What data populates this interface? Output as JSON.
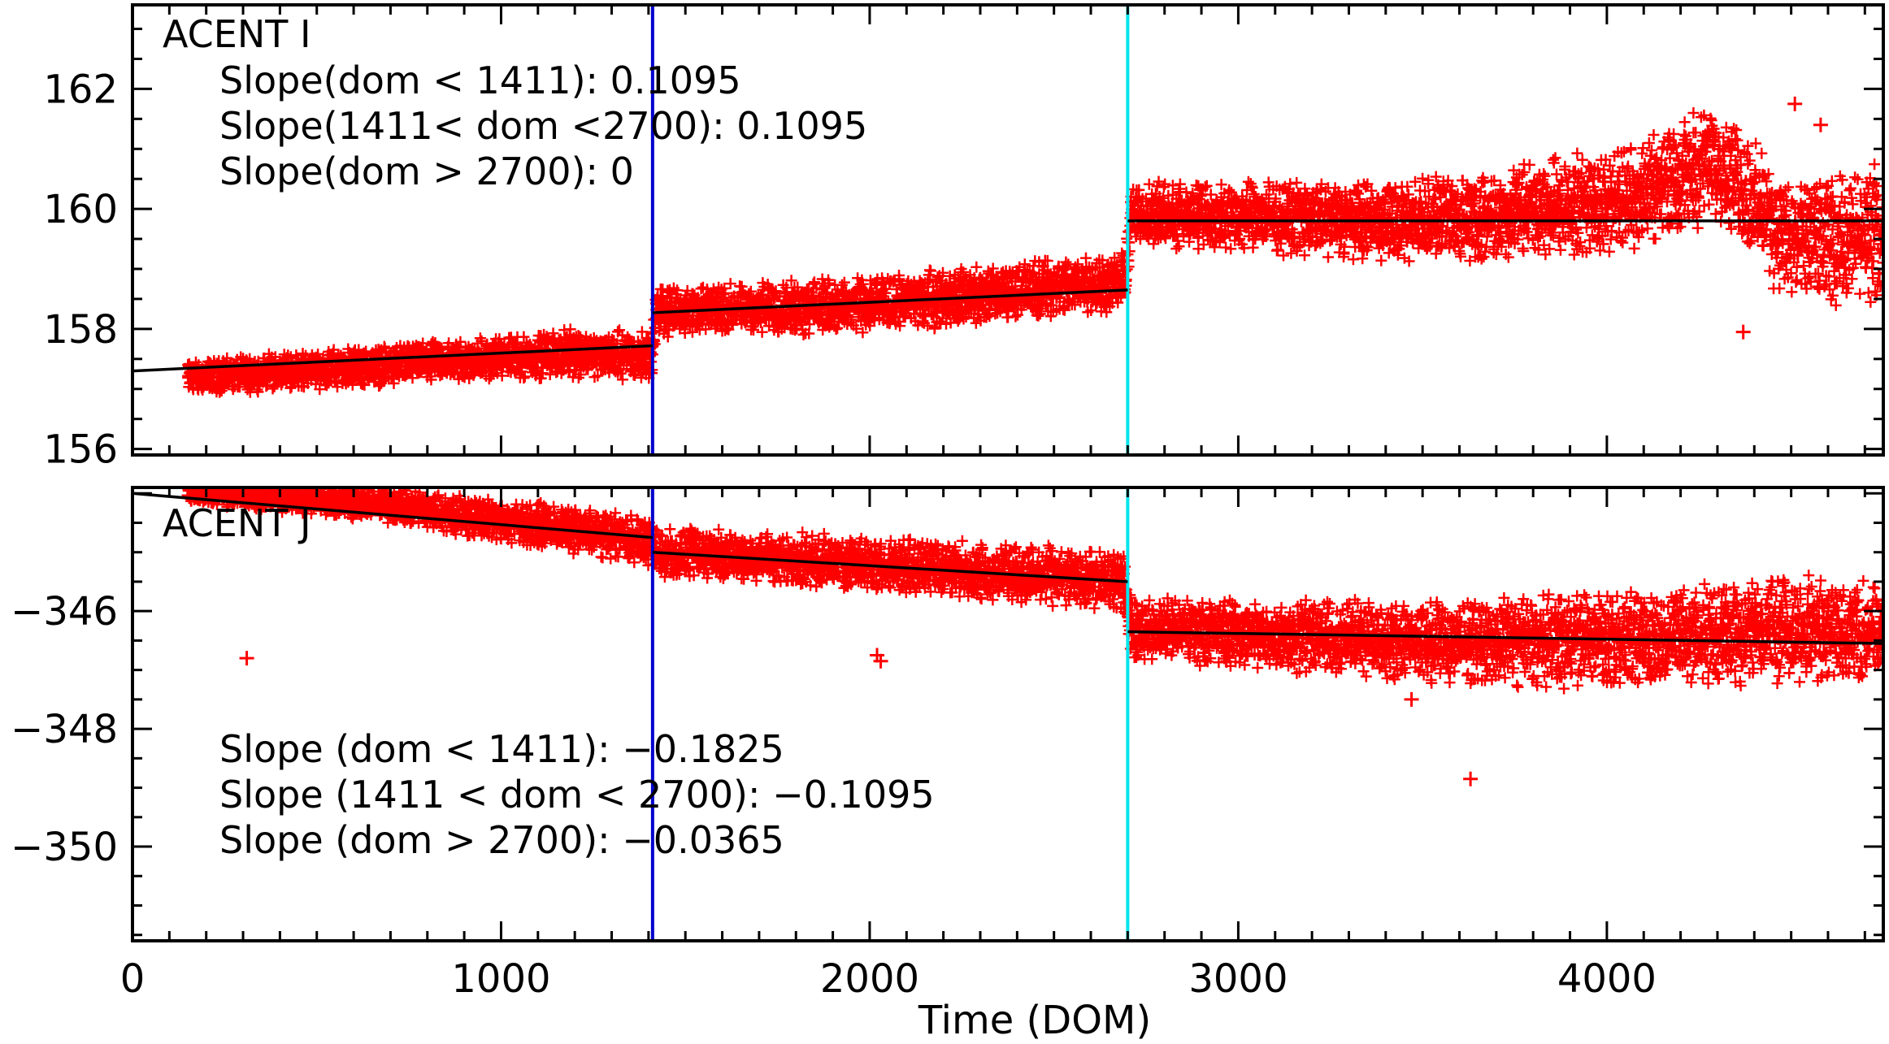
{
  "chart_data": [
    {
      "type": "scatter",
      "title": "ACENT I",
      "xlabel": "",
      "ylabel": "",
      "xlim": [
        0,
        4750
      ],
      "ylim": [
        155.9,
        163.4
      ],
      "yticks": [
        156,
        158,
        160,
        162
      ],
      "ytick_labels": [
        "156",
        "158",
        "160",
        "162"
      ],
      "annotations": [
        "Slope(dom < 1411): 0.1095",
        "Slope(1411< dom <2700): 0.1095",
        "Slope(dom > 2700): 0"
      ],
      "vlines": [
        {
          "x": 1411,
          "color": "#0000cc"
        },
        {
          "x": 2700,
          "color": "#00e5ee"
        }
      ],
      "fit_segments": [
        {
          "x": [
            0,
            1411
          ],
          "y": [
            157.3,
            157.72
          ]
        },
        {
          "x": [
            1411,
            2700
          ],
          "y": [
            158.27,
            158.65
          ]
        },
        {
          "x": [
            2700,
            4750
          ],
          "y": [
            159.8,
            159.8
          ]
        }
      ],
      "series": [
        {
          "name": "data",
          "color": "#ff0000",
          "range": [
            150,
            4750
          ],
          "anchors": [
            [
              150,
              157.2
            ],
            [
              700,
              157.4
            ],
            [
              1200,
              157.6
            ],
            [
              1410,
              157.55
            ],
            [
              1420,
              158.3
            ],
            [
              2000,
              158.4
            ],
            [
              2690,
              158.8
            ],
            [
              2710,
              159.9
            ],
            [
              3500,
              159.8
            ],
            [
              4000,
              160.1
            ],
            [
              4300,
              160.8
            ],
            [
              4500,
              159.4
            ],
            [
              4750,
              159.6
            ]
          ],
          "spread": [
            [
              150,
              0.3
            ],
            [
              1400,
              0.45
            ],
            [
              2700,
              0.55
            ],
            [
              3500,
              0.75
            ],
            [
              4200,
              1.0
            ],
            [
              4750,
              1.2
            ]
          ],
          "outliers": [
            [
              4510,
              161.75
            ],
            [
              4580,
              161.4
            ],
            [
              4370,
              157.95
            ]
          ]
        }
      ]
    },
    {
      "type": "scatter",
      "title": "ACENT J",
      "xlabel": "Time (DOM)",
      "ylabel": "",
      "xlim": [
        0,
        4750
      ],
      "ylim": [
        -351.6,
        -343.9
      ],
      "yticks": [
        -346,
        -348,
        -350
      ],
      "ytick_labels": [
        "−346",
        "−348",
        "−350"
      ],
      "xticks": [
        0,
        1000,
        2000,
        3000,
        4000
      ],
      "xtick_labels": [
        "0",
        "1000",
        "2000",
        "3000",
        "4000"
      ],
      "annotations": [
        "Slope (dom < 1411): −0.1825",
        "Slope (1411 < dom < 2700): −0.1095",
        "Slope (dom > 2700): −0.0365"
      ],
      "vlines": [
        {
          "x": 1411,
          "color": "#0000cc"
        },
        {
          "x": 2700,
          "color": "#00e5ee"
        }
      ],
      "fit_segments": [
        {
          "x": [
            0,
            1411
          ],
          "y": [
            -344.0,
            -344.75
          ]
        },
        {
          "x": [
            1411,
            2700
          ],
          "y": [
            -345.0,
            -345.5
          ]
        },
        {
          "x": [
            2700,
            4750
          ],
          "y": [
            -346.35,
            -346.55
          ]
        }
      ],
      "series": [
        {
          "name": "data",
          "color": "#ff0000",
          "range": [
            150,
            4750
          ],
          "anchors": [
            [
              150,
              -343.95
            ],
            [
              700,
              -344.2
            ],
            [
              1400,
              -344.8
            ],
            [
              1420,
              -345.0
            ],
            [
              2000,
              -345.2
            ],
            [
              2690,
              -345.5
            ],
            [
              2710,
              -346.3
            ],
            [
              3500,
              -346.5
            ],
            [
              4000,
              -346.5
            ],
            [
              4500,
              -346.3
            ],
            [
              4750,
              -346.4
            ]
          ],
          "spread": [
            [
              150,
              0.25
            ],
            [
              1400,
              0.45
            ],
            [
              2700,
              0.55
            ],
            [
              3500,
              0.75
            ],
            [
              4400,
              0.95
            ],
            [
              4750,
              1.0
            ]
          ],
          "outliers": [
            [
              310,
              -346.8
            ],
            [
              2020,
              -346.75
            ],
            [
              2030,
              -346.85
            ],
            [
              3470,
              -347.5
            ],
            [
              3630,
              -348.85
            ]
          ]
        }
      ]
    }
  ]
}
